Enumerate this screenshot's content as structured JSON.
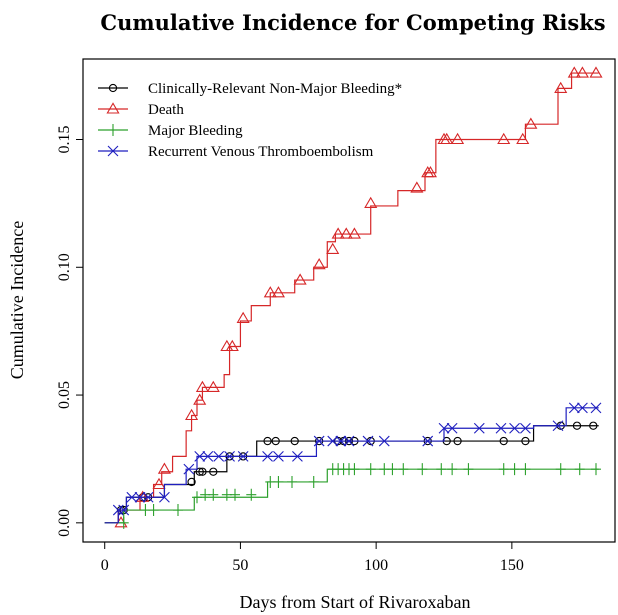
{
  "chart_data": {
    "type": "line",
    "title": "Cumulative Incidence for Competing Risks",
    "xlabel": "Days from Start of Rivaroxaban",
    "ylabel": "Cumulative Incidence",
    "xlim": [
      -8,
      188
    ],
    "ylim": [
      -0.0075,
      0.1815
    ],
    "x_ticks": [
      0,
      50,
      100,
      150
    ],
    "y_ticks": [
      0.0,
      0.05,
      0.1,
      0.15
    ],
    "x_tick_labels": [
      "0",
      "50",
      "100",
      "150"
    ],
    "y_tick_labels": [
      "0.00",
      "0.05",
      "0.10",
      "0.15"
    ],
    "legend_position": "top-left",
    "series": [
      {
        "name": "Clinically-Relevant Non-Major Bleeding*",
        "color": "#000000",
        "marker": "circle",
        "steps": [
          [
            0,
            0
          ],
          [
            5,
            0.005
          ],
          [
            8,
            0.01
          ],
          [
            15,
            0.01
          ],
          [
            22,
            0.015
          ],
          [
            33,
            0.02
          ],
          [
            45,
            0.026
          ],
          [
            56,
            0.032
          ],
          [
            85,
            0.032
          ],
          [
            125,
            0.032
          ],
          [
            158,
            0.038
          ],
          [
            182,
            0.038
          ]
        ],
        "markers": [
          [
            6,
            0.005
          ],
          [
            7,
            0.005
          ],
          [
            14,
            0.01
          ],
          [
            16,
            0.01
          ],
          [
            32,
            0.016
          ],
          [
            35,
            0.02
          ],
          [
            36,
            0.02
          ],
          [
            40,
            0.02
          ],
          [
            46,
            0.026
          ],
          [
            51,
            0.026
          ],
          [
            60,
            0.032
          ],
          [
            63,
            0.032
          ],
          [
            70,
            0.032
          ],
          [
            79,
            0.032
          ],
          [
            86,
            0.032
          ],
          [
            88,
            0.032
          ],
          [
            90,
            0.032
          ],
          [
            92,
            0.032
          ],
          [
            98,
            0.032
          ],
          [
            119,
            0.032
          ],
          [
            126,
            0.032
          ],
          [
            130,
            0.032
          ],
          [
            147,
            0.032
          ],
          [
            155,
            0.032
          ],
          [
            168,
            0.038
          ],
          [
            174,
            0.038
          ],
          [
            180,
            0.038
          ]
        ]
      },
      {
        "name": "Death",
        "color": "#d62728",
        "marker": "triangle",
        "steps": [
          [
            0,
            0
          ],
          [
            5,
            0.005
          ],
          [
            8,
            0.005
          ],
          [
            13,
            0.01
          ],
          [
            18,
            0.015
          ],
          [
            21,
            0.02
          ],
          [
            25,
            0.026
          ],
          [
            30,
            0.036
          ],
          [
            32,
            0.042
          ],
          [
            34,
            0.048
          ],
          [
            36,
            0.053
          ],
          [
            44,
            0.058
          ],
          [
            46,
            0.069
          ],
          [
            50,
            0.079
          ],
          [
            54,
            0.085
          ],
          [
            61,
            0.09
          ],
          [
            65,
            0.09
          ],
          [
            70,
            0.095
          ],
          [
            77,
            0.1
          ],
          [
            82,
            0.11
          ],
          [
            85,
            0.113
          ],
          [
            90,
            0.113
          ],
          [
            98,
            0.124
          ],
          [
            108,
            0.13
          ],
          [
            118,
            0.137
          ],
          [
            122,
            0.15
          ],
          [
            130,
            0.15
          ],
          [
            150,
            0.15
          ],
          [
            155,
            0.156
          ],
          [
            167,
            0.17
          ],
          [
            172,
            0.176
          ],
          [
            182,
            0.176
          ]
        ],
        "markers": [
          [
            6,
            0.0
          ],
          [
            14,
            0.01
          ],
          [
            20,
            0.015
          ],
          [
            22,
            0.021
          ],
          [
            32,
            0.042
          ],
          [
            35,
            0.048
          ],
          [
            36,
            0.053
          ],
          [
            40,
            0.053
          ],
          [
            45,
            0.069
          ],
          [
            47,
            0.069
          ],
          [
            51,
            0.08
          ],
          [
            61,
            0.09
          ],
          [
            64,
            0.09
          ],
          [
            72,
            0.095
          ],
          [
            79,
            0.101
          ],
          [
            84,
            0.107
          ],
          [
            86,
            0.113
          ],
          [
            89,
            0.113
          ],
          [
            92,
            0.113
          ],
          [
            98,
            0.125
          ],
          [
            115,
            0.131
          ],
          [
            119,
            0.137
          ],
          [
            120,
            0.137
          ],
          [
            125,
            0.15
          ],
          [
            126,
            0.15
          ],
          [
            130,
            0.15
          ],
          [
            147,
            0.15
          ],
          [
            154,
            0.15
          ],
          [
            157,
            0.156
          ],
          [
            168,
            0.17
          ],
          [
            173,
            0.176
          ],
          [
            176,
            0.176
          ],
          [
            181,
            0.176
          ]
        ]
      },
      {
        "name": "Major Bleeding",
        "color": "#2ca02c",
        "marker": "plus",
        "steps": [
          [
            0,
            0
          ],
          [
            5,
            0.0
          ],
          [
            7,
            0.005
          ],
          [
            15,
            0.005
          ],
          [
            20,
            0.005
          ],
          [
            33,
            0.01
          ],
          [
            60,
            0.016
          ],
          [
            82,
            0.021
          ],
          [
            182,
            0.021
          ]
        ],
        "markers": [
          [
            7,
            0.0
          ],
          [
            15,
            0.005
          ],
          [
            18,
            0.005
          ],
          [
            27,
            0.005
          ],
          [
            34,
            0.01
          ],
          [
            37,
            0.011
          ],
          [
            40,
            0.011
          ],
          [
            45,
            0.011
          ],
          [
            48,
            0.011
          ],
          [
            54,
            0.011
          ],
          [
            61,
            0.016
          ],
          [
            64,
            0.016
          ],
          [
            69,
            0.016
          ],
          [
            77,
            0.016
          ],
          [
            84,
            0.021
          ],
          [
            86,
            0.021
          ],
          [
            88,
            0.021
          ],
          [
            90,
            0.021
          ],
          [
            92,
            0.021
          ],
          [
            98,
            0.021
          ],
          [
            103,
            0.021
          ],
          [
            106,
            0.021
          ],
          [
            110,
            0.021
          ],
          [
            117,
            0.021
          ],
          [
            124,
            0.021
          ],
          [
            128,
            0.021
          ],
          [
            134,
            0.021
          ],
          [
            147,
            0.021
          ],
          [
            151,
            0.021
          ],
          [
            155,
            0.021
          ],
          [
            168,
            0.021
          ],
          [
            175,
            0.021
          ],
          [
            181,
            0.021
          ]
        ]
      },
      {
        "name": "Recurrent Venous Thromboembolism",
        "color": "#1f1fbf",
        "marker": "x",
        "steps": [
          [
            0,
            0
          ],
          [
            5,
            0.005
          ],
          [
            8,
            0.01
          ],
          [
            14,
            0.01
          ],
          [
            22,
            0.015
          ],
          [
            30,
            0.021
          ],
          [
            34,
            0.026
          ],
          [
            60,
            0.026
          ],
          [
            78,
            0.032
          ],
          [
            125,
            0.037
          ],
          [
            158,
            0.038
          ],
          [
            170,
            0.045
          ],
          [
            182,
            0.045
          ]
        ],
        "markers": [
          [
            5,
            0.005
          ],
          [
            7,
            0.005
          ],
          [
            10,
            0.01
          ],
          [
            13,
            0.01
          ],
          [
            16,
            0.01
          ],
          [
            22,
            0.01
          ],
          [
            31,
            0.021
          ],
          [
            35,
            0.026
          ],
          [
            38,
            0.026
          ],
          [
            42,
            0.026
          ],
          [
            46,
            0.026
          ],
          [
            51,
            0.026
          ],
          [
            60,
            0.026
          ],
          [
            64,
            0.026
          ],
          [
            71,
            0.026
          ],
          [
            79,
            0.032
          ],
          [
            84,
            0.032
          ],
          [
            87,
            0.032
          ],
          [
            90,
            0.032
          ],
          [
            97,
            0.032
          ],
          [
            103,
            0.032
          ],
          [
            119,
            0.032
          ],
          [
            125,
            0.037
          ],
          [
            128,
            0.037
          ],
          [
            138,
            0.037
          ],
          [
            146,
            0.037
          ],
          [
            151,
            0.037
          ],
          [
            155,
            0.037
          ],
          [
            167,
            0.038
          ],
          [
            173,
            0.045
          ],
          [
            176,
            0.045
          ],
          [
            181,
            0.045
          ]
        ]
      }
    ]
  }
}
